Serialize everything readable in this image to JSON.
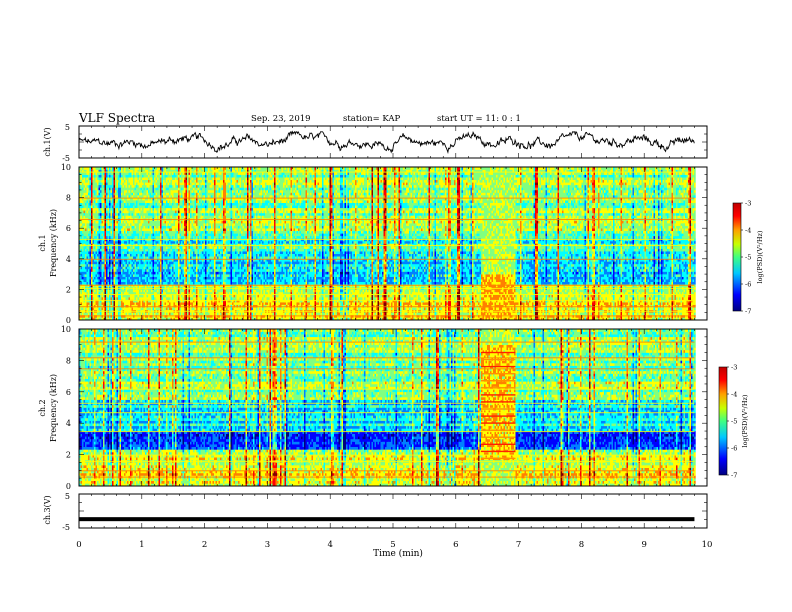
{
  "header": {
    "title": "VLF Spectra",
    "date": "Sep. 23, 2019",
    "station": "station= KAP",
    "start": "start  UT =   11: 0  : 1"
  },
  "chart_data": [
    {
      "type": "line",
      "panel": "ch1-waveform",
      "ylabel": "ch.1(V)",
      "ylim": [
        -5,
        5
      ],
      "yticks": [
        "5",
        "-5"
      ],
      "xlim": [
        0,
        10
      ],
      "description_values": {
        "x_minutes": [
          0,
          9.8
        ],
        "amplitude_range": [
          -3,
          3
        ]
      }
    },
    {
      "type": "heatmap",
      "panel": "ch1-spectrogram",
      "ylabel": "ch.1\nFrequency (kHz)",
      "ylabel_line1": "ch.1",
      "ylabel_line2": "Frequency (kHz)",
      "ylim": [
        0,
        10
      ],
      "yticks": [
        "0",
        "2",
        "4",
        "6",
        "8",
        "10"
      ],
      "xlim": [
        0,
        10
      ],
      "data_x_range": [
        0,
        9.8
      ],
      "event_window_min": [
        6.4,
        6.95
      ],
      "colorbar": {
        "label": "log(PSD)(V²/Hz)",
        "range": [
          -7,
          -3
        ],
        "ticks": [
          "-3",
          "-4",
          "-5",
          "-6",
          "-7"
        ]
      }
    },
    {
      "type": "heatmap",
      "panel": "ch2-spectrogram",
      "ylabel_line1": "ch.2",
      "ylabel_line2": "Frequency (kHz)",
      "ylim": [
        0,
        10
      ],
      "yticks": [
        "0",
        "2",
        "4",
        "6",
        "8",
        "10"
      ],
      "xlim": [
        0,
        10
      ],
      "data_x_range": [
        0,
        9.8
      ],
      "event_window_min": [
        6.4,
        6.95
      ],
      "colorbar": {
        "label": "log(PSD)(V²/Hz)",
        "range": [
          -7,
          -3
        ],
        "ticks": [
          "-3",
          "-4",
          "-5",
          "-6",
          "-7"
        ]
      }
    },
    {
      "type": "line",
      "panel": "ch3-waveform",
      "ylabel": "ch.3(V)",
      "ylim": [
        -5,
        5
      ],
      "yticks": [
        "5",
        "-5"
      ],
      "xlim": [
        0,
        10
      ],
      "series": [
        {
          "x": [
            0,
            9.8
          ],
          "y": [
            -2.4,
            -2.4
          ]
        }
      ]
    }
  ],
  "xaxis": {
    "label": "Time  (min)",
    "ticks": [
      "0",
      "1",
      "2",
      "3",
      "4",
      "5",
      "6",
      "7",
      "8",
      "9",
      "10"
    ]
  },
  "colors": {
    "ink": "#000000",
    "cmap": [
      "#00007f",
      "#0000ff",
      "#0080ff",
      "#00ffff",
      "#80ff80",
      "#ffff00",
      "#ff8000",
      "#ff0000",
      "#7f0000"
    ]
  }
}
